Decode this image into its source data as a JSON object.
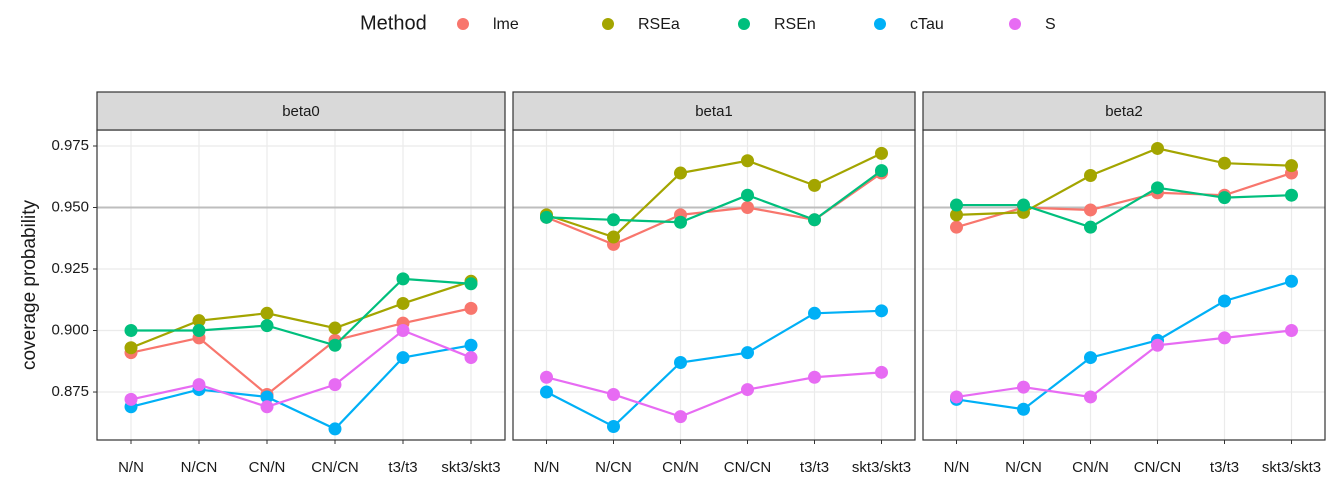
{
  "chart_data": {
    "type": "line",
    "y_label": "coverage probability",
    "legend_title": "Method",
    "legend_position": "top",
    "grid": true,
    "categories": [
      "N/N",
      "N/CN",
      "CN/N",
      "CN/CN",
      "t3/t3",
      "skt3/skt3"
    ],
    "ylim": [
      0.8555,
      0.9815
    ],
    "yticks": [
      0.875,
      {
        "value": 0.9,
        "label": "0.900"
      },
      0.925,
      {
        "value": 0.95,
        "label": "0.950"
      },
      0.975
    ],
    "hline": 0.95,
    "legend": [
      {
        "name": "lme",
        "color": "#F8766D"
      },
      {
        "name": "RSEa",
        "color": "#A3A500"
      },
      {
        "name": "RSEn",
        "color": "#00BF7D"
      },
      {
        "name": "cTau",
        "color": "#00B0F6"
      },
      {
        "name": "S",
        "color": "#E76BF3"
      }
    ],
    "facets": [
      {
        "title": "beta0",
        "series": [
          {
            "values": [
              0.891,
              0.897,
              0.874,
              0.896,
              0.903,
              0.909
            ]
          },
          {
            "values": [
              0.893,
              0.904,
              0.907,
              0.901,
              0.911,
              0.92
            ]
          },
          {
            "values": [
              0.9,
              0.9,
              0.902,
              0.894,
              0.921,
              0.919
            ]
          },
          {
            "values": [
              0.869,
              0.876,
              0.873,
              0.86,
              0.889,
              0.894
            ]
          },
          {
            "values": [
              0.872,
              0.878,
              0.869,
              0.878,
              0.9,
              0.889
            ]
          }
        ]
      },
      {
        "title": "beta1",
        "series": [
          {
            "values": [
              0.946,
              0.935,
              0.947,
              0.95,
              0.945,
              0.964
            ]
          },
          {
            "values": [
              0.947,
              0.938,
              0.964,
              0.969,
              0.959,
              0.972
            ]
          },
          {
            "values": [
              0.946,
              0.945,
              0.944,
              0.955,
              0.945,
              0.965
            ]
          },
          {
            "values": [
              0.875,
              0.861,
              0.887,
              0.891,
              0.907,
              0.908
            ]
          },
          {
            "values": [
              0.881,
              0.874,
              0.865,
              0.876,
              0.881,
              0.883
            ]
          }
        ]
      },
      {
        "title": "beta2",
        "series": [
          {
            "values": [
              0.942,
              0.95,
              0.949,
              0.956,
              0.955,
              0.964
            ]
          },
          {
            "values": [
              0.947,
              0.948,
              0.963,
              0.974,
              0.968,
              0.967
            ]
          },
          {
            "values": [
              0.951,
              0.951,
              0.942,
              0.958,
              0.954,
              0.955
            ]
          },
          {
            "values": [
              0.872,
              0.868,
              0.889,
              0.896,
              0.912,
              0.92
            ]
          },
          {
            "values": [
              0.873,
              0.877,
              0.873,
              0.894,
              0.897,
              0.9
            ]
          }
        ]
      }
    ]
  }
}
